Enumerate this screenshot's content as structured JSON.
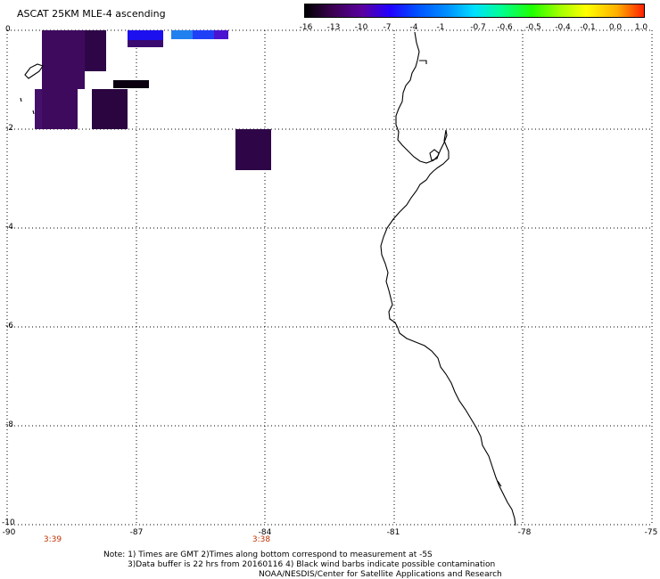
{
  "title": "ASCAT 25KM MLE-4 ascending",
  "colorbar": {
    "ticks": [
      "-16",
      "-13",
      "-10",
      "-7",
      "-4",
      "-1",
      "-0.7",
      "-0.6",
      "-0.5",
      "-0.4",
      "-0.1",
      "0.0",
      "1.0"
    ]
  },
  "map": {
    "lon_range": [
      -90,
      -75
    ],
    "lat_range": [
      -10,
      0
    ],
    "lat_labels": [
      "0",
      "-2",
      "-4",
      "-6",
      "-8",
      "-10"
    ],
    "lon_labels": [
      "-90",
      "-87",
      "-84",
      "-81",
      "-78",
      "-75"
    ],
    "times": [
      "3:39",
      "3:38"
    ],
    "grid": "dotted",
    "coastline_color": "#000000"
  },
  "footer": {
    "note1": "Note: 1) Times are GMT 2)Times along bottom correspond to measurement at -5S",
    "note2": "3)Data buffer is 22 hrs from 20160116 4) Black wind barbs indicate possible contamination",
    "credit": "NOAA/NESDIS/Center for Satellite Applications and Research"
  }
}
